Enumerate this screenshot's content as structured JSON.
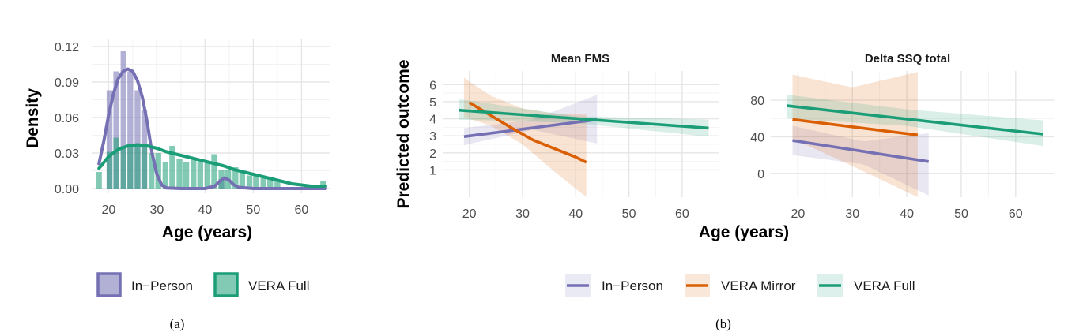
{
  "chart_data": [
    {
      "type": "histogram_density",
      "panel_label": "(a)",
      "title": "",
      "xlabel": "Age (years)",
      "ylabel": "Density",
      "xlim": [
        16.5,
        66
      ],
      "ylim": [
        -0.004,
        0.126
      ],
      "x_ticks": [
        20,
        30,
        40,
        50,
        60
      ],
      "x_tick_labels": [
        "20",
        "30",
        "40",
        "50",
        "60"
      ],
      "y_ticks": [
        0,
        0.03,
        0.06,
        0.09,
        0.12
      ],
      "y_tick_labels": [
        "0.00",
        "0.03",
        "0.06",
        "0.09",
        "0.12"
      ],
      "grid": true,
      "legend_position": "bottom",
      "bin_width": 1.45,
      "series": [
        {
          "name": "In−Person",
          "color": "#7570b3",
          "bins": [
            {
              "center": 18.0,
              "density": 0.0
            },
            {
              "center": 20.2,
              "density": 0.083
            },
            {
              "center": 21.6,
              "density": 0.099
            },
            {
              "center": 23.1,
              "density": 0.116
            },
            {
              "center": 24.5,
              "density": 0.099
            },
            {
              "center": 26.0,
              "density": 0.083
            },
            {
              "center": 27.4,
              "density": 0.066
            },
            {
              "center": 43.4,
              "density": 0.008
            }
          ],
          "density_curve": [
            [
              18.0,
              0.021
            ],
            [
              19.0,
              0.04
            ],
            [
              20.0,
              0.062
            ],
            [
              21.0,
              0.08
            ],
            [
              22.0,
              0.093
            ],
            [
              23.0,
              0.099
            ],
            [
              24.0,
              0.101
            ],
            [
              25.0,
              0.099
            ],
            [
              26.0,
              0.091
            ],
            [
              27.0,
              0.077
            ],
            [
              28.0,
              0.056
            ],
            [
              29.0,
              0.03
            ],
            [
              30.0,
              0.012
            ],
            [
              31.0,
              0.003
            ],
            [
              32.0,
              0.0005
            ],
            [
              35.0,
              0.0
            ],
            [
              40.0,
              0.0
            ],
            [
              42.0,
              0.002
            ],
            [
              43.0,
              0.006
            ],
            [
              44.0,
              0.009
            ],
            [
              45.0,
              0.007
            ],
            [
              46.0,
              0.003
            ],
            [
              47.0,
              0.001
            ],
            [
              50.0,
              0.0
            ],
            [
              65.0,
              0.0
            ]
          ]
        },
        {
          "name": "VERA Full",
          "color": "#1b9e77",
          "bins": [
            {
              "center": 18.0,
              "density": 0.014
            },
            {
              "center": 20.2,
              "density": 0.031
            },
            {
              "center": 21.6,
              "density": 0.043
            },
            {
              "center": 23.1,
              "density": 0.036
            },
            {
              "center": 24.5,
              "density": 0.036
            },
            {
              "center": 26.0,
              "density": 0.037
            },
            {
              "center": 27.4,
              "density": 0.038
            },
            {
              "center": 28.9,
              "density": 0.03
            },
            {
              "center": 30.3,
              "density": 0.03
            },
            {
              "center": 31.8,
              "density": 0.022
            },
            {
              "center": 33.2,
              "density": 0.036
            },
            {
              "center": 34.7,
              "density": 0.025
            },
            {
              "center": 36.1,
              "density": 0.022
            },
            {
              "center": 37.6,
              "density": 0.025
            },
            {
              "center": 39.0,
              "density": 0.022
            },
            {
              "center": 40.5,
              "density": 0.022
            },
            {
              "center": 41.9,
              "density": 0.029
            },
            {
              "center": 43.4,
              "density": 0.016
            },
            {
              "center": 44.8,
              "density": 0.016
            },
            {
              "center": 46.3,
              "density": 0.018
            },
            {
              "center": 47.7,
              "density": 0.014
            },
            {
              "center": 49.2,
              "density": 0.011
            },
            {
              "center": 50.6,
              "density": 0.011
            },
            {
              "center": 52.1,
              "density": 0.011
            },
            {
              "center": 53.5,
              "density": 0.009
            },
            {
              "center": 55.0,
              "density": 0.006
            },
            {
              "center": 64.5,
              "density": 0.006
            }
          ],
          "density_curve": [
            [
              18.0,
              0.017
            ],
            [
              20.0,
              0.027
            ],
            [
              22.0,
              0.033
            ],
            [
              24.0,
              0.036
            ],
            [
              26.0,
              0.037
            ],
            [
              28.0,
              0.036
            ],
            [
              30.0,
              0.034
            ],
            [
              32.0,
              0.031
            ],
            [
              34.0,
              0.029
            ],
            [
              36.0,
              0.027
            ],
            [
              38.0,
              0.025
            ],
            [
              40.0,
              0.023
            ],
            [
              42.0,
              0.021
            ],
            [
              44.0,
              0.019
            ],
            [
              46.0,
              0.016
            ],
            [
              48.0,
              0.014
            ],
            [
              50.0,
              0.012
            ],
            [
              52.0,
              0.01
            ],
            [
              54.0,
              0.008
            ],
            [
              56.0,
              0.006
            ],
            [
              58.0,
              0.004
            ],
            [
              60.0,
              0.003
            ],
            [
              62.0,
              0.002
            ],
            [
              65.0,
              0.002
            ]
          ]
        }
      ]
    },
    {
      "type": "line",
      "panel_label": "(b)",
      "xlabel": "Age (years)",
      "ylabel": "Predicted outcome",
      "legend_position": "bottom",
      "grid": true,
      "legend_series": [
        {
          "name": "In−Person",
          "color": "#7570b3"
        },
        {
          "name": "VERA Mirror",
          "color": "#d95f02"
        },
        {
          "name": "VERA Full",
          "color": "#1b9e77"
        }
      ],
      "facets": [
        {
          "title": "Mean FMS",
          "xlim": [
            15,
            67
          ],
          "ylim": [
            -0.6,
            6.8
          ],
          "x_ticks": [
            20,
            30,
            40,
            50,
            60
          ],
          "x_tick_labels": [
            "20",
            "30",
            "40",
            "50",
            "60"
          ],
          "y_ticks": [
            1,
            2,
            3,
            4,
            5,
            6
          ],
          "y_tick_labels": [
            "1",
            "2",
            "3",
            "4",
            "5",
            "6"
          ],
          "series": [
            {
              "name": "In−Person",
              "color": "#7570b3",
              "line": [
                [
                  19,
                  2.95
                ],
                [
                  44,
                  3.95
                ]
              ],
              "ci_upper": [
                [
                  19,
                  3.45
                ],
                [
                  32,
                  3.95
                ],
                [
                  44,
                  5.4
                ]
              ],
              "ci_lower": [
                [
                  19,
                  2.45
                ],
                [
                  32,
                  3.35
                ],
                [
                  44,
                  2.55
                ]
              ]
            },
            {
              "name": "VERA Mirror",
              "color": "#d95f02",
              "line": [
                [
                  20,
                  4.95
                ],
                [
                  24,
                  4.2
                ],
                [
                  28,
                  3.45
                ],
                [
                  32,
                  2.75
                ],
                [
                  36,
                  2.25
                ],
                [
                  40,
                  1.75
                ],
                [
                  42,
                  1.45
                ]
              ],
              "ci_upper": [
                [
                  19,
                  6.4
                ],
                [
                  24,
                  5.35
                ],
                [
                  30,
                  4.6
                ],
                [
                  36,
                  4.3
                ],
                [
                  42,
                  4.3
                ]
              ],
              "ci_lower": [
                [
                  19,
                  4.1
                ],
                [
                  24,
                  3.6
                ],
                [
                  30,
                  2.5
                ],
                [
                  36,
                  0.9
                ],
                [
                  42,
                  -0.6
                ]
              ]
            },
            {
              "name": "VERA Full",
              "color": "#1b9e77",
              "line": [
                [
                  18,
                  4.5
                ],
                [
                  65,
                  3.45
                ]
              ],
              "ci_upper": [
                [
                  18,
                  5.15
                ],
                [
                  40,
                  4.15
                ],
                [
                  65,
                  3.95
                ]
              ],
              "ci_lower": [
                [
                  18,
                  3.95
                ],
                [
                  40,
                  3.75
                ],
                [
                  65,
                  2.95
                ]
              ]
            }
          ]
        },
        {
          "title": "Delta SSQ total",
          "xlim": [
            15,
            67
          ],
          "ylim": [
            -26,
            112
          ],
          "x_ticks": [
            20,
            30,
            40,
            50,
            60
          ],
          "x_tick_labels": [
            "20",
            "30",
            "40",
            "50",
            "60"
          ],
          "y_ticks": [
            0,
            40,
            80
          ],
          "y_tick_labels": [
            "0",
            "40",
            "80"
          ],
          "series": [
            {
              "name": "In−Person",
              "color": "#7570b3",
              "line": [
                [
                  19,
                  36
                ],
                [
                  44,
                  13
                ]
              ],
              "ci_upper": [
                [
                  19,
                  52
                ],
                [
                  32,
                  35
                ],
                [
                  44,
                  44
                ]
              ],
              "ci_lower": [
                [
                  19,
                  20
                ],
                [
                  32,
                  10
                ],
                [
                  44,
                  -24
                ]
              ]
            },
            {
              "name": "VERA Mirror",
              "color": "#d95f02",
              "line": [
                [
                  19,
                  59
                ],
                [
                  42,
                  42
                ]
              ],
              "ci_upper": [
                [
                  19,
                  108
                ],
                [
                  30,
                  94
                ],
                [
                  42,
                  111
                ]
              ],
              "ci_lower": [
                [
                  19,
                  38
                ],
                [
                  30,
                  8
                ],
                [
                  42,
                  -26
                ]
              ]
            },
            {
              "name": "VERA Full",
              "color": "#1b9e77",
              "line": [
                [
                  18,
                  74
                ],
                [
                  65,
                  43
                ]
              ],
              "ci_upper": [
                [
                  18,
                  86
                ],
                [
                  40,
                  70
                ],
                [
                  65,
                  58
                ]
              ],
              "ci_lower": [
                [
                  18,
                  60
                ],
                [
                  40,
                  52
                ],
                [
                  65,
                  30
                ]
              ]
            }
          ]
        }
      ]
    }
  ]
}
